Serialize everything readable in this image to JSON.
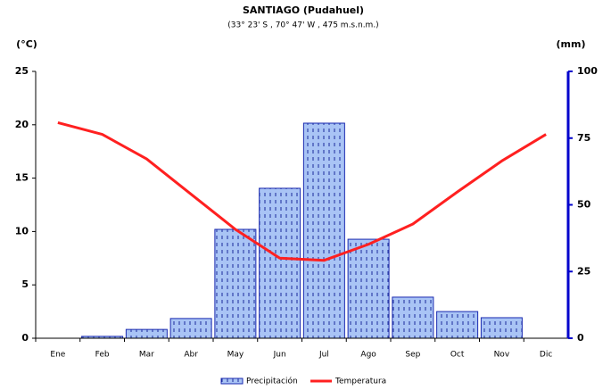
{
  "chart_data": {
    "type": "bar-line",
    "title": "SANTIAGO  (Pudahuel)",
    "subtitle": "(33° 23' S , 70° 47' W , 475 m.s.n.m.)",
    "y_label": "(°C)",
    "y2_label": "(mm)",
    "categories": [
      "Ene",
      "Feb",
      "Mar",
      "Abr",
      "May",
      "Jun",
      "Jul",
      "Ago",
      "Sep",
      "Oct",
      "Nov",
      "Dic"
    ],
    "series": [
      {
        "name": "Precipitación",
        "type": "bar",
        "axis": "y2",
        "color": "#a9c4f5",
        "values": [
          0,
          0.7,
          3.3,
          7.4,
          40.8,
          56.2,
          80.6,
          37.1,
          15.4,
          10,
          7.7,
          0
        ]
      },
      {
        "name": "Temperatura",
        "type": "line",
        "axis": "y",
        "color": "#ff2020",
        "values": [
          20.2,
          19.1,
          16.8,
          13.5,
          10.2,
          7.5,
          7.3,
          8.8,
          10.7,
          13.7,
          16.6,
          19.1
        ]
      }
    ],
    "ylim": [
      0,
      25
    ],
    "yticks": [
      0,
      5,
      10,
      15,
      20,
      25
    ],
    "y2lim": [
      0,
      100
    ],
    "y2ticks": [
      0,
      25,
      50,
      75,
      100
    ],
    "y2_axis_color": "#0000cc",
    "legend": "bottom"
  }
}
